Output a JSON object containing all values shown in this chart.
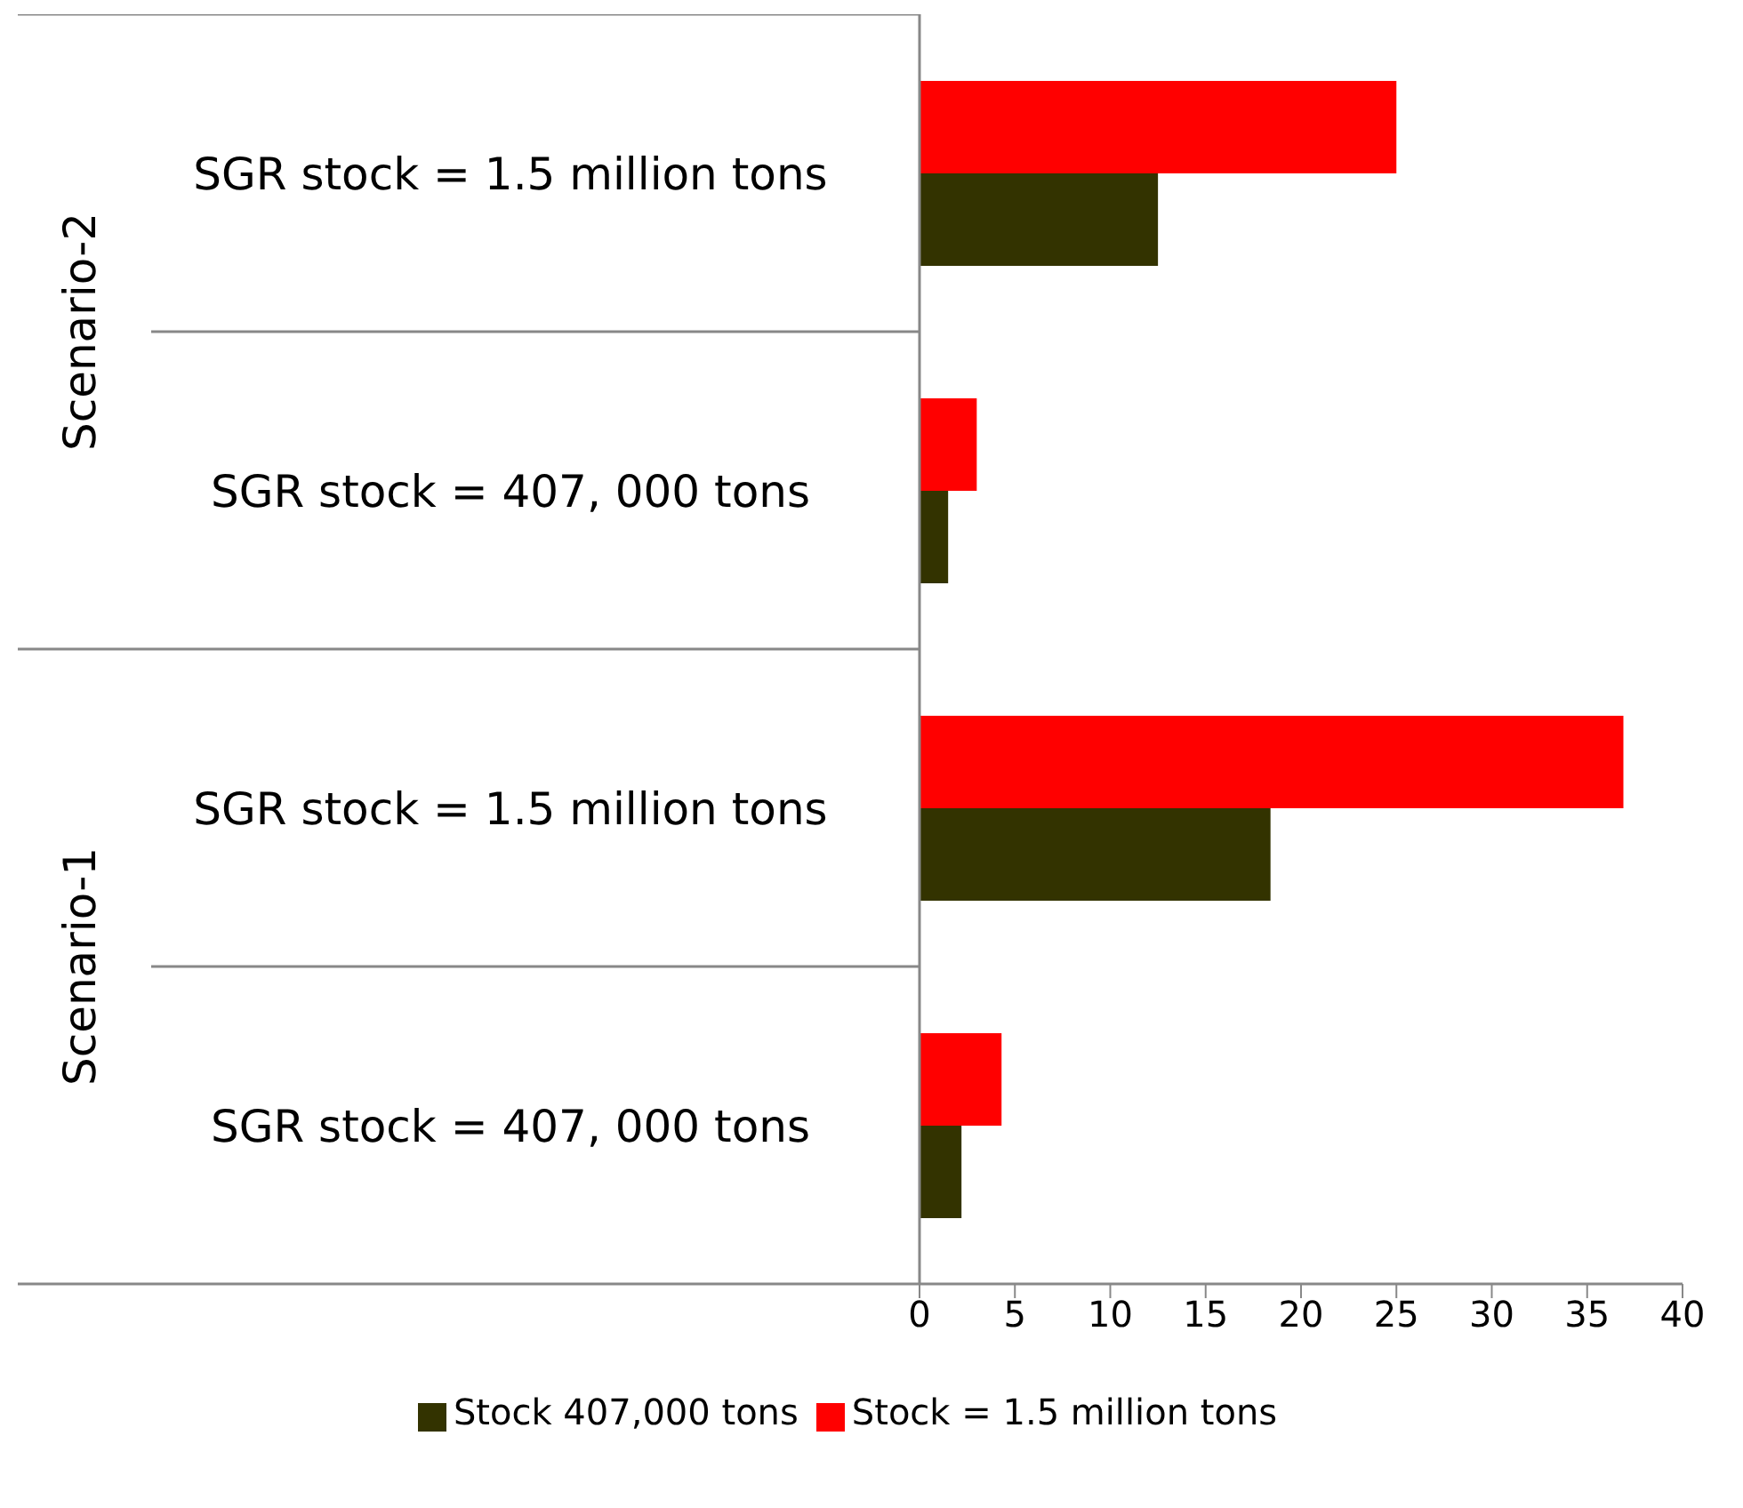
{
  "chart_data": {
    "type": "bar",
    "orientation": "horizontal",
    "categories": [
      "SGR stock = 1.5 million tons",
      "SGR stock = 407, 000 tons",
      "SGR stock = 1.5 million tons",
      "SGR stock = 407, 000 tons"
    ],
    "series": [
      {
        "name": "Stock = 1.5 million tons",
        "color": "#ff0000",
        "values": [
          25.0,
          3.0,
          36.9,
          4.3
        ]
      },
      {
        "name": "Stock 407,000 tons",
        "color": "#333300",
        "values": [
          12.5,
          1.5,
          18.4,
          2.2
        ]
      }
    ],
    "annotations": [
      "Scenario-2",
      "Scenario-1"
    ],
    "xlim": [
      0,
      40
    ],
    "xticks": [
      0,
      5,
      10,
      15,
      20,
      25,
      30,
      35,
      40
    ],
    "grid": false,
    "legend": "bottom"
  }
}
